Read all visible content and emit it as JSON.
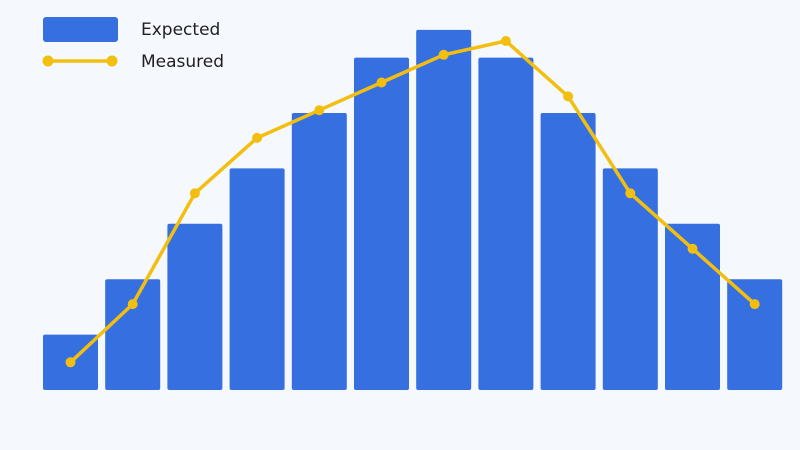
{
  "chart_data": {
    "type": "bar",
    "title": "",
    "xlabel": "",
    "ylabel": "",
    "categories": [
      "",
      "",
      "",
      "",
      "",
      "",
      "",
      "",
      "",
      "",
      "",
      ""
    ],
    "series": [
      {
        "name": "Expected",
        "type": "bar",
        "color": "#3670e0",
        "values": [
          1,
          2,
          3,
          4,
          5,
          6,
          6.5,
          6,
          5,
          4,
          3,
          2
        ]
      },
      {
        "name": "Measured",
        "type": "line",
        "color": "#f2bf10",
        "values": [
          0.5,
          1.55,
          3.55,
          4.55,
          5.05,
          5.55,
          6.05,
          6.3,
          5.3,
          3.55,
          2.55,
          1.55
        ]
      }
    ],
    "ylim": [
      0,
      6.5
    ],
    "grid": false,
    "legend_position": "top-left"
  }
}
